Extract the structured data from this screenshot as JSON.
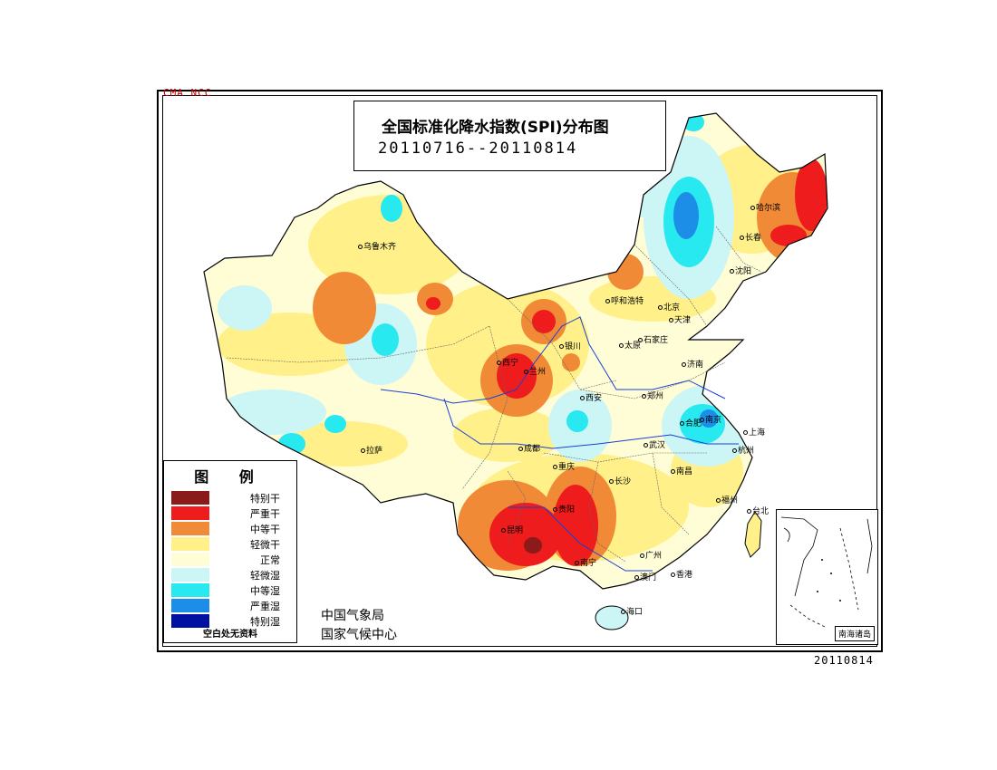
{
  "watermark": "CMA  NCC",
  "title": {
    "main": "全国标准化降水指数(SPI)分布图",
    "dates": "20110716--20110814"
  },
  "legend": {
    "title": "图 例",
    "items": [
      {
        "label": "特别干",
        "color": "#8b1a1a"
      },
      {
        "label": "严重干",
        "color": "#ee1c1c"
      },
      {
        "label": "中等干",
        "color": "#f08a36"
      },
      {
        "label": "轻微干",
        "color": "#fff08a"
      },
      {
        "label": "正常",
        "color": "#fffdd6"
      },
      {
        "label": "轻微湿",
        "color": "#ccf5f5"
      },
      {
        "label": "中等湿",
        "color": "#28e8f0"
      },
      {
        "label": "严重湿",
        "color": "#1c8ee8"
      },
      {
        "label": "特别湿",
        "color": "#0010a0"
      }
    ],
    "note": "空白处无资料"
  },
  "agency": {
    "line1": "中国气象局",
    "line2": "国家气候中心"
  },
  "inset_label": "南海诸岛",
  "stamp": "20110814",
  "cities": [
    {
      "name": "乌鲁木齐"
    },
    {
      "name": "拉萨"
    },
    {
      "name": "西宁"
    },
    {
      "name": "兰州"
    },
    {
      "name": "银川"
    },
    {
      "name": "呼和浩特"
    },
    {
      "name": "北京"
    },
    {
      "name": "天津"
    },
    {
      "name": "石家庄"
    },
    {
      "name": "太原"
    },
    {
      "name": "济南"
    },
    {
      "name": "郑州"
    },
    {
      "name": "西安"
    },
    {
      "name": "成都"
    },
    {
      "name": "重庆"
    },
    {
      "name": "贵阳"
    },
    {
      "name": "昆明"
    },
    {
      "name": "南宁"
    },
    {
      "name": "广州"
    },
    {
      "name": "澳门"
    },
    {
      "name": "香港"
    },
    {
      "name": "海口"
    },
    {
      "name": "长沙"
    },
    {
      "name": "武汉"
    },
    {
      "name": "南昌"
    },
    {
      "name": "福州"
    },
    {
      "name": "台北"
    },
    {
      "name": "杭州"
    },
    {
      "name": "上海"
    },
    {
      "name": "南京"
    },
    {
      "name": "合肥"
    },
    {
      "name": "沈阳"
    },
    {
      "name": "长春"
    },
    {
      "name": "哈尔滨"
    }
  ]
}
